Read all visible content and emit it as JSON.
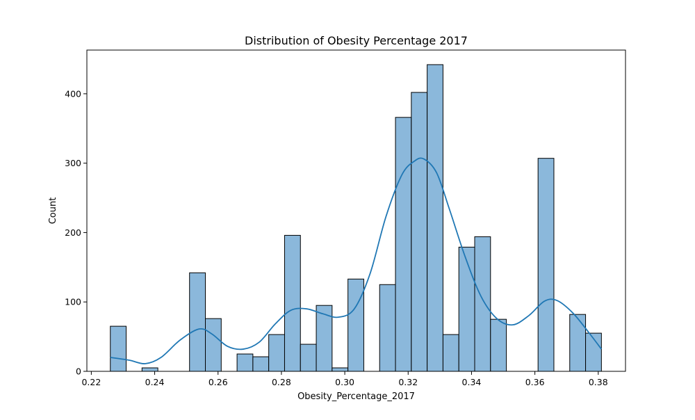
{
  "chart_data": {
    "type": "bar",
    "title": "Distribution of Obesity Percentage 2017",
    "xlabel": "Obesity_Percentage_2017",
    "ylabel": "Count",
    "xlim": [
      0.2186,
      0.3886
    ],
    "ylim": [
      0,
      463
    ],
    "x_ticks": [
      0.22,
      0.24,
      0.26,
      0.28,
      0.3,
      0.32,
      0.34,
      0.36,
      0.38
    ],
    "x_tick_labels": [
      "0.22",
      "0.24",
      "0.26",
      "0.28",
      "0.30",
      "0.32",
      "0.34",
      "0.36",
      "0.38"
    ],
    "y_ticks": [
      0,
      100,
      200,
      300,
      400
    ],
    "y_tick_labels": [
      "0",
      "100",
      "200",
      "300",
      "400"
    ],
    "grid": false,
    "bin_start": 0.226,
    "bin_width": 0.005,
    "values": [
      65,
      0,
      5,
      0,
      0,
      142,
      76,
      0,
      25,
      21,
      53,
      196,
      39,
      95,
      5,
      133,
      0,
      125,
      366,
      402,
      442,
      53,
      179,
      194,
      75,
      0,
      0,
      307,
      0,
      82,
      55
    ],
    "kde": {
      "x": [
        0.226,
        0.232,
        0.237,
        0.242,
        0.248,
        0.254,
        0.258,
        0.263,
        0.268,
        0.273,
        0.278,
        0.283,
        0.288,
        0.293,
        0.298,
        0.303,
        0.308,
        0.313,
        0.318,
        0.322,
        0.325,
        0.329,
        0.333,
        0.338,
        0.343,
        0.348,
        0.353,
        0.358,
        0.363,
        0.367,
        0.372,
        0.377,
        0.381
      ],
      "y": [
        20,
        16,
        11,
        20,
        45,
        61,
        54,
        36,
        32,
        42,
        68,
        88,
        90,
        83,
        78,
        90,
        141,
        223,
        283,
        303,
        306,
        286,
        234,
        165,
        108,
        76,
        67,
        80,
        101,
        102,
        84,
        56,
        32
      ]
    },
    "colors": {
      "bar_fill": "#8bb8db",
      "bar_edge": "#000000",
      "kde_line": "#1f77b4"
    }
  }
}
